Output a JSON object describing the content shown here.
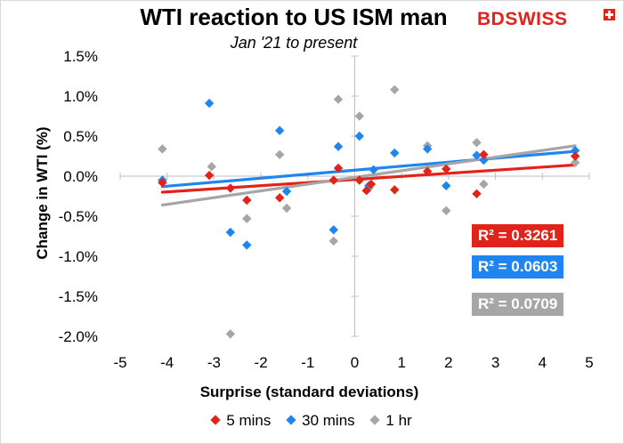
{
  "chart_data": {
    "type": "scatter",
    "title": "WTI reaction to US ISM man",
    "subtitle": "Jan '21 to present",
    "xlabel": "Surprise (standard deviations)",
    "ylabel": "Change in WTI  (%)",
    "xlim": [
      -5,
      5
    ],
    "ylim": [
      -2.0,
      1.5
    ],
    "x_ticks": [
      "-5",
      "-4",
      "-3",
      "-2",
      "-1",
      "0",
      "1",
      "2",
      "3",
      "4",
      "5"
    ],
    "y_ticks": [
      "1.5%",
      "1.0%",
      "0.5%",
      "0.0%",
      "-0.5%",
      "-1.0%",
      "-1.5%",
      "-2.0%"
    ],
    "legend_position": "bottom",
    "series": [
      {
        "name": "5 mins",
        "color": "#e2231a",
        "r2_label": "R² = 0.3261",
        "trend": {
          "x": [
            -4.1,
            4.7
          ],
          "y": [
            -0.2,
            0.14
          ]
        },
        "points": [
          {
            "x": -4.1,
            "y": -0.08
          },
          {
            "x": -3.1,
            "y": 0.01
          },
          {
            "x": -2.65,
            "y": -0.15
          },
          {
            "x": -2.3,
            "y": -0.3
          },
          {
            "x": -1.6,
            "y": -0.27
          },
          {
            "x": -0.45,
            "y": -0.05
          },
          {
            "x": -0.35,
            "y": 0.1
          },
          {
            "x": 0.1,
            "y": -0.05
          },
          {
            "x": 0.25,
            "y": -0.18
          },
          {
            "x": 0.35,
            "y": -0.1
          },
          {
            "x": 0.85,
            "y": -0.17
          },
          {
            "x": 1.55,
            "y": 0.06
          },
          {
            "x": 1.95,
            "y": 0.09
          },
          {
            "x": 2.6,
            "y": -0.22
          },
          {
            "x": 2.75,
            "y": 0.27
          },
          {
            "x": 4.7,
            "y": 0.25
          }
        ]
      },
      {
        "name": "30 mins",
        "color": "#1f85f0",
        "r2_label": "R² = 0.0603",
        "trend": {
          "x": [
            -4.1,
            4.7
          ],
          "y": [
            -0.13,
            0.31
          ]
        },
        "points": [
          {
            "x": -4.1,
            "y": -0.05
          },
          {
            "x": -3.1,
            "y": 0.91
          },
          {
            "x": -2.65,
            "y": -0.7
          },
          {
            "x": -2.3,
            "y": -0.86
          },
          {
            "x": -1.6,
            "y": 0.57
          },
          {
            "x": -1.45,
            "y": -0.19
          },
          {
            "x": -0.45,
            "y": -0.67
          },
          {
            "x": -0.35,
            "y": 0.37
          },
          {
            "x": 0.1,
            "y": 0.5
          },
          {
            "x": 0.3,
            "y": -0.12
          },
          {
            "x": 0.4,
            "y": 0.08
          },
          {
            "x": 0.85,
            "y": 0.29
          },
          {
            "x": 1.55,
            "y": 0.34
          },
          {
            "x": 1.95,
            "y": -0.12
          },
          {
            "x": 2.6,
            "y": 0.26
          },
          {
            "x": 2.75,
            "y": 0.2
          },
          {
            "x": 4.7,
            "y": 0.32
          }
        ]
      },
      {
        "name": "1 hr",
        "color": "#a6a6a6",
        "r2_label": "R² = 0.0709",
        "trend": {
          "x": [
            -4.1,
            4.7
          ],
          "y": [
            -0.36,
            0.38
          ]
        },
        "points": [
          {
            "x": -4.1,
            "y": 0.34
          },
          {
            "x": -3.05,
            "y": 0.12
          },
          {
            "x": -2.65,
            "y": -1.97
          },
          {
            "x": -2.3,
            "y": -0.53
          },
          {
            "x": -1.6,
            "y": 0.27
          },
          {
            "x": -1.45,
            "y": -0.4
          },
          {
            "x": -0.45,
            "y": -0.81
          },
          {
            "x": -0.35,
            "y": 0.96
          },
          {
            "x": 0.1,
            "y": 0.75
          },
          {
            "x": 0.3,
            "y": -0.15
          },
          {
            "x": 0.85,
            "y": 1.08
          },
          {
            "x": 1.55,
            "y": 0.38
          },
          {
            "x": 1.95,
            "y": -0.43
          },
          {
            "x": 2.6,
            "y": 0.42
          },
          {
            "x": 2.75,
            "y": -0.1
          },
          {
            "x": 4.7,
            "y": 0.17
          }
        ]
      }
    ]
  },
  "brand": {
    "name": "BDSWISS",
    "color": "#e2231a"
  }
}
